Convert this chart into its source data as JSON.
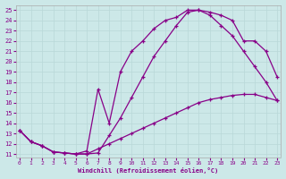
{
  "xlabel": "Windchill (Refroidissement éolien,°C)",
  "xlim": [
    -0.3,
    23.3
  ],
  "ylim": [
    10.7,
    25.5
  ],
  "xticks": [
    0,
    1,
    2,
    3,
    4,
    5,
    6,
    7,
    8,
    9,
    10,
    11,
    12,
    13,
    14,
    15,
    16,
    17,
    18,
    19,
    20,
    21,
    22,
    23
  ],
  "yticks": [
    11,
    12,
    13,
    14,
    15,
    16,
    17,
    18,
    19,
    20,
    21,
    22,
    23,
    24,
    25
  ],
  "bg_color": "#cce8e8",
  "line_color": "#880088",
  "grid_color": "#b8d8d8",
  "curve1_x": [
    0,
    1,
    2,
    3,
    4,
    5,
    6,
    7,
    8,
    9,
    10,
    11,
    12,
    13,
    14,
    15,
    16,
    17,
    18,
    19,
    20,
    21,
    22,
    23
  ],
  "curve1_y": [
    13.3,
    12.2,
    11.8,
    11.2,
    11.1,
    11.0,
    11.0,
    11.1,
    12.8,
    14.5,
    16.5,
    18.5,
    20.5,
    22.0,
    23.5,
    24.8,
    25.0,
    24.5,
    23.5,
    22.5,
    21.0,
    19.5,
    18.0,
    16.2
  ],
  "curve2_x": [
    0,
    1,
    2,
    3,
    4,
    5,
    6,
    7,
    8,
    9,
    10,
    11,
    12,
    13,
    14,
    15,
    16,
    17,
    18,
    19,
    20,
    21,
    22,
    23
  ],
  "curve2_y": [
    13.3,
    12.2,
    11.8,
    11.2,
    11.1,
    11.0,
    11.0,
    11.5,
    12.0,
    12.5,
    13.0,
    13.5,
    14.0,
    14.5,
    15.0,
    15.5,
    16.0,
    16.3,
    16.5,
    16.7,
    16.8,
    16.8,
    16.5,
    16.2
  ],
  "curve3_x": [
    0,
    1,
    2,
    3,
    4,
    5,
    6,
    7,
    8,
    9,
    10,
    11,
    12,
    13,
    14,
    15,
    16,
    17,
    18,
    19,
    20,
    21,
    22,
    23
  ],
  "curve3_y": [
    13.3,
    12.2,
    11.8,
    11.2,
    11.1,
    11.0,
    11.3,
    17.3,
    14.0,
    19.0,
    21.0,
    22.0,
    23.2,
    24.0,
    24.3,
    25.0,
    25.0,
    24.8,
    24.5,
    24.0,
    22.0,
    22.0,
    21.0,
    18.5
  ]
}
